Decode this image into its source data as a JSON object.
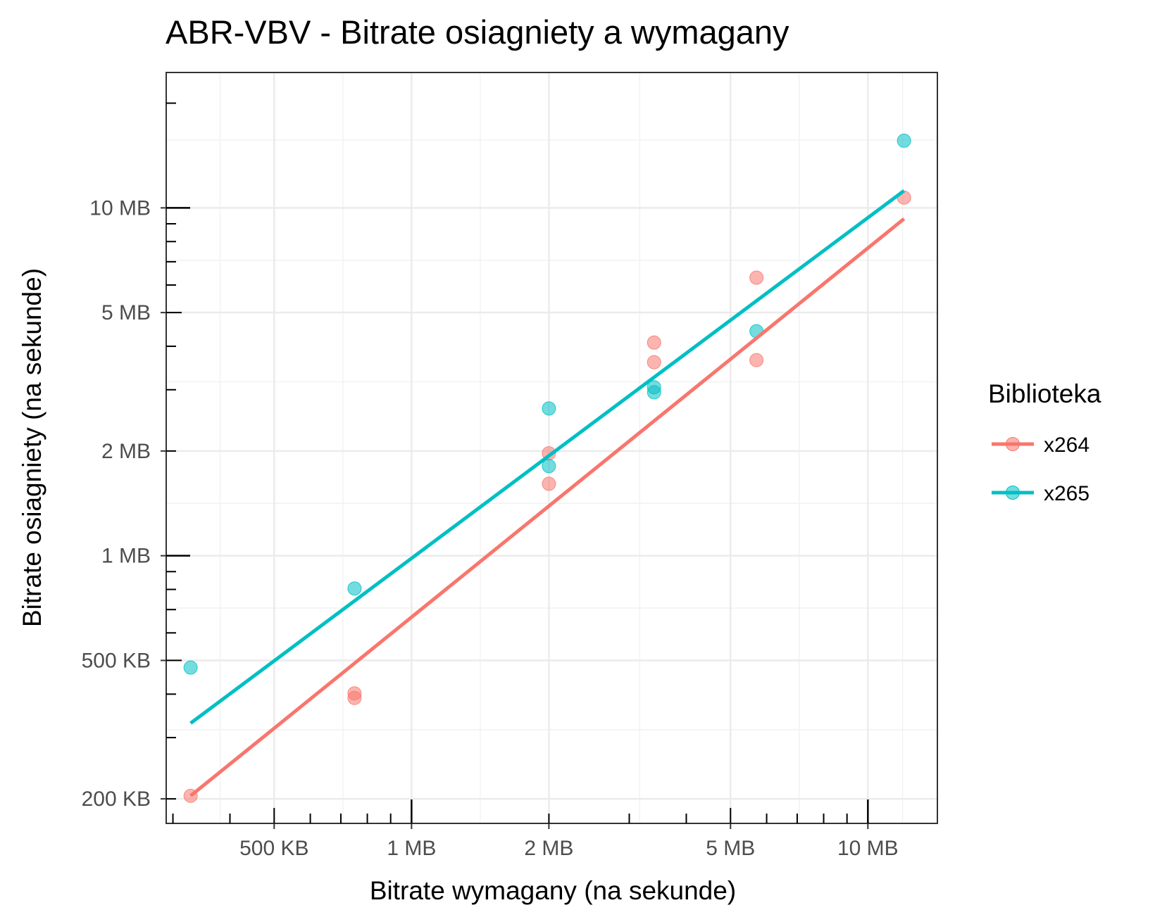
{
  "chart_data": {
    "type": "scatter",
    "title": "ABR-VBV - Bitrate osiagniety a wymagany",
    "xlabel": "Bitrate wymagany (na sekunde)",
    "ylabel": "Bitrate osiagniety (na sekunde)",
    "x_scale": "log10",
    "y_scale": "log10",
    "xlim_kb": [
      290,
      14200
    ],
    "ylim_kb": [
      170,
      24500
    ],
    "x_ticks": [
      {
        "value_kb": 500,
        "label": "500 KB"
      },
      {
        "value_kb": 1000,
        "label": "1 MB"
      },
      {
        "value_kb": 2000,
        "label": "2 MB"
      },
      {
        "value_kb": 5000,
        "label": "5 MB"
      },
      {
        "value_kb": 10000,
        "label": "10 MB"
      }
    ],
    "y_ticks": [
      {
        "value_kb": 200,
        "label": "200 KB"
      },
      {
        "value_kb": 500,
        "label": "500 KB"
      },
      {
        "value_kb": 1000,
        "label": "1 MB"
      },
      {
        "value_kb": 2000,
        "label": "2 MB"
      },
      {
        "value_kb": 5000,
        "label": "5 MB"
      },
      {
        "value_kb": 10000,
        "label": "10 MB"
      }
    ],
    "grid": true,
    "legend": {
      "title": "Biblioteka",
      "position": "right"
    },
    "series": [
      {
        "name": "x264",
        "color": "#F8766D",
        "points_kb": [
          [
            328,
            204
          ],
          [
            750,
            402
          ],
          [
            750,
            390
          ],
          [
            2000,
            1970
          ],
          [
            2000,
            1610
          ],
          [
            3400,
            4100
          ],
          [
            3400,
            3600
          ],
          [
            5700,
            6300
          ],
          [
            5700,
            3650
          ],
          [
            12000,
            10700
          ]
        ],
        "trend_kb": [
          [
            328,
            204
          ],
          [
            12000,
            9300
          ]
        ]
      },
      {
        "name": "x265",
        "color": "#00BFC4",
        "points_kb": [
          [
            328,
            477
          ],
          [
            750,
            805
          ],
          [
            2000,
            2650
          ],
          [
            2000,
            1810
          ],
          [
            3400,
            3050
          ],
          [
            3400,
            2950
          ],
          [
            5700,
            4420
          ],
          [
            12000,
            15600
          ]
        ],
        "trend_kb": [
          [
            328,
            330
          ],
          [
            12000,
            11200
          ]
        ]
      }
    ]
  }
}
